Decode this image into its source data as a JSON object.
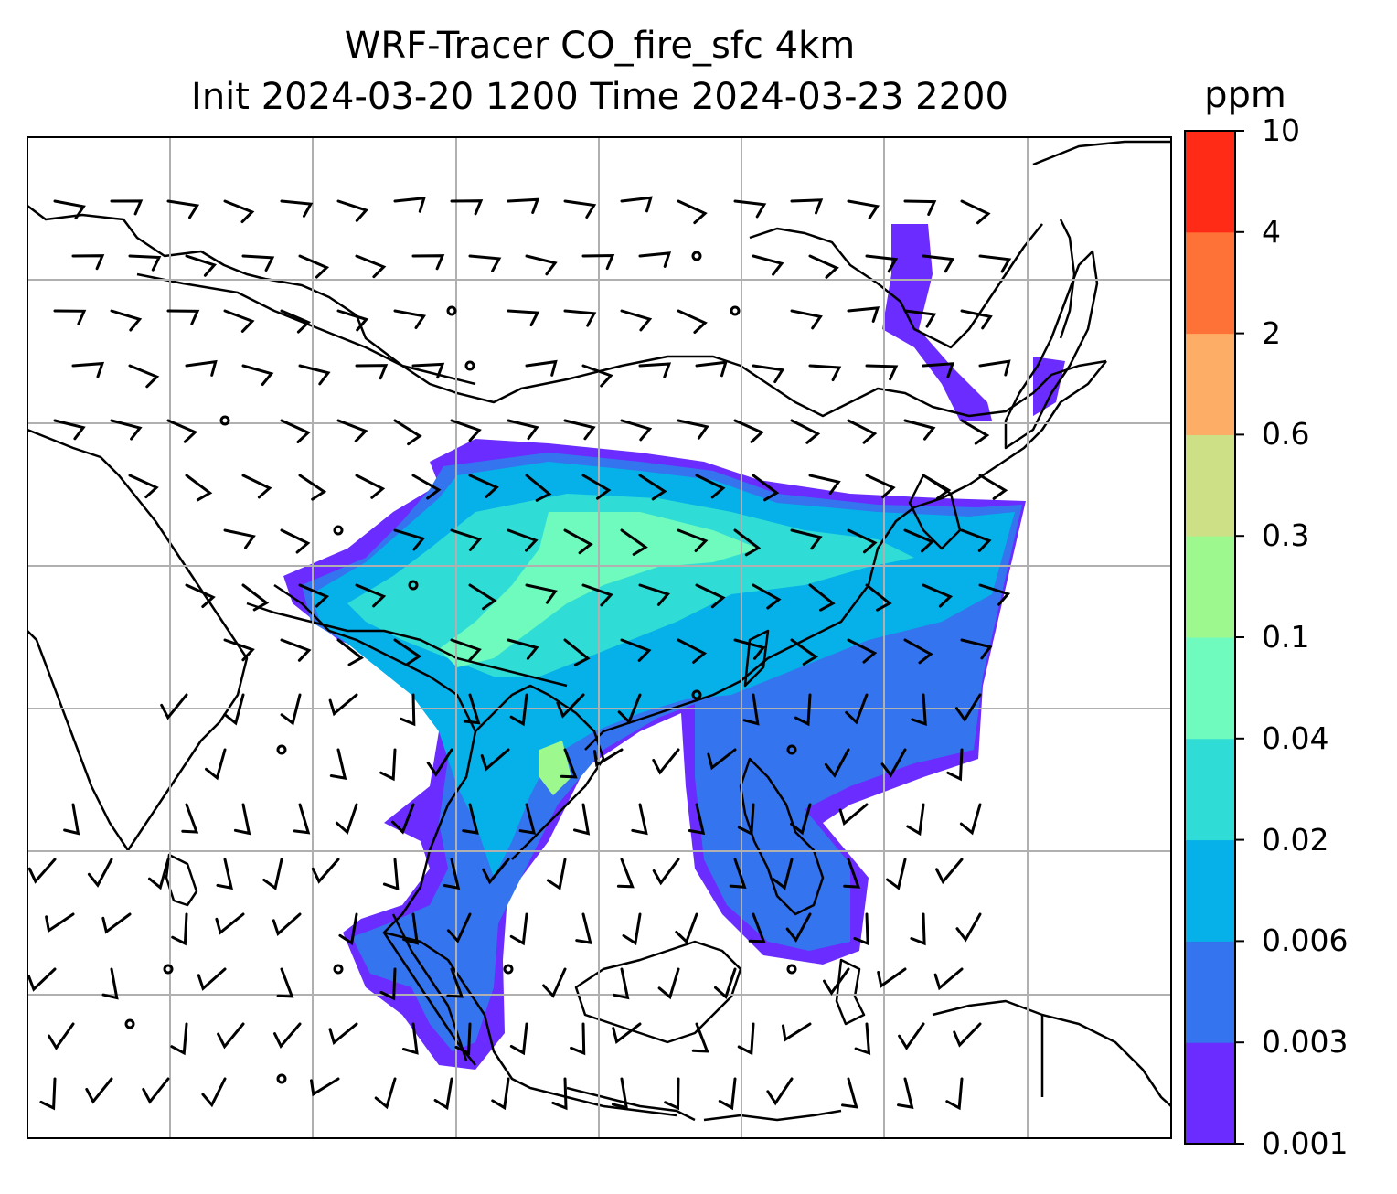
{
  "title": {
    "line1": "WRF-Tracer CO_fire_sfc 4km",
    "line2": "Init 2024-03-20 1200 Time 2024-03-23 2200"
  },
  "colorbar": {
    "unit": "ppm",
    "levels": [
      "0.001",
      "0.003",
      "0.006",
      "0.02",
      "0.04",
      "0.1",
      "0.3",
      "0.6",
      "2",
      "4",
      "10"
    ],
    "colors": [
      "#6a2cff",
      "#3574ef",
      "#05b1e8",
      "#2fddd6",
      "#6efbbd",
      "#9df88e",
      "#cde085",
      "#fdad65",
      "#fe7137",
      "#ff2b17"
    ]
  },
  "colors": {
    "gridline": "#b0b0b0",
    "coastline": "#000000",
    "barb": "#000000"
  }
}
